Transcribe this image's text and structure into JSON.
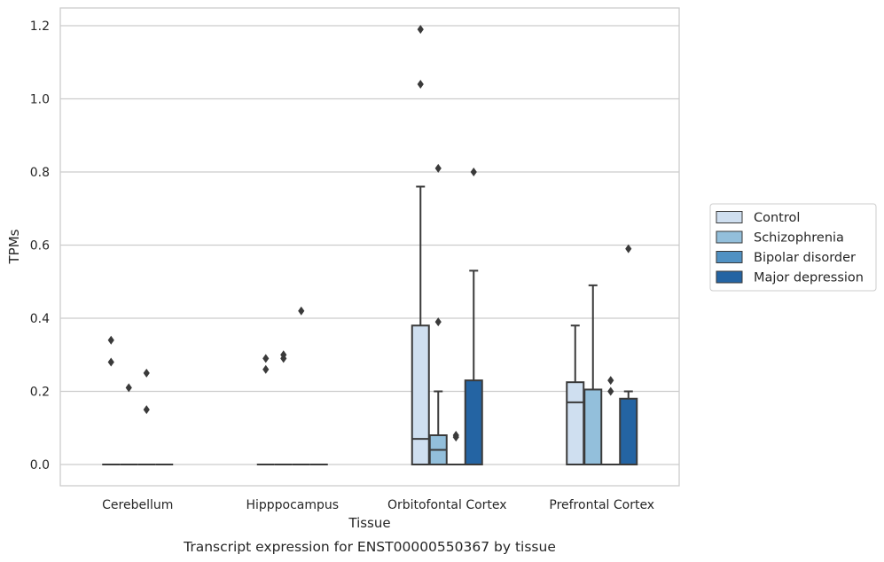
{
  "chart_data": {
    "type": "box",
    "title": "",
    "caption": "Transcript expression for ENST00000550367 by tissue",
    "xlabel": "Tissue",
    "ylabel": "TPMs",
    "ylim": [
      -0.058,
      1.25
    ],
    "yticks": [
      0.0,
      0.2,
      0.4,
      0.6,
      0.8,
      1.0,
      1.2
    ],
    "ytick_labels": [
      "0.0",
      "0.2",
      "0.4",
      "0.6",
      "0.8",
      "1.0",
      "1.2"
    ],
    "grid": "horizontal",
    "legend_position": "right",
    "categories": [
      "Cerebellum",
      "Hipppocampus",
      "Orbitofontal Cortex",
      "Prefrontal Cortex"
    ],
    "series": [
      {
        "name": "Control",
        "color": "#cfdff0",
        "boxes": [
          {
            "q1": 0,
            "median": 0,
            "q3": 0,
            "whisker_low": 0,
            "whisker_high": 0,
            "fliers": [
              0.34,
              0.28
            ]
          },
          {
            "q1": 0,
            "median": 0,
            "q3": 0,
            "whisker_low": 0,
            "whisker_high": 0,
            "fliers": [
              0.29,
              0.26
            ]
          },
          {
            "q1": 0,
            "median": 0.07,
            "q3": 0.38,
            "whisker_low": 0,
            "whisker_high": 0.76,
            "fliers": [
              1.19,
              1.04
            ]
          },
          {
            "q1": 0,
            "median": 0.17,
            "q3": 0.225,
            "whisker_low": 0,
            "whisker_high": 0.38,
            "fliers": []
          }
        ]
      },
      {
        "name": "Schizophrenia",
        "color": "#93bfdb",
        "boxes": [
          {
            "q1": 0,
            "median": 0,
            "q3": 0,
            "whisker_low": 0,
            "whisker_high": 0,
            "fliers": [
              0.21
            ]
          },
          {
            "q1": 0,
            "median": 0,
            "q3": 0,
            "whisker_low": 0,
            "whisker_high": 0,
            "fliers": [
              0.3,
              0.29
            ]
          },
          {
            "q1": 0,
            "median": 0.04,
            "q3": 0.08,
            "whisker_low": 0,
            "whisker_high": 0.2,
            "fliers": [
              0.81,
              0.39
            ]
          },
          {
            "q1": 0,
            "median": 0,
            "q3": 0.205,
            "whisker_low": 0,
            "whisker_high": 0.49,
            "fliers": []
          }
        ]
      },
      {
        "name": "Bipolar disorder",
        "color": "#5091c3",
        "boxes": [
          {
            "q1": 0,
            "median": 0,
            "q3": 0,
            "whisker_low": 0,
            "whisker_high": 0,
            "fliers": [
              0.25,
              0.15
            ]
          },
          {
            "q1": 0,
            "median": 0,
            "q3": 0,
            "whisker_low": 0,
            "whisker_high": 0,
            "fliers": [
              0.42
            ]
          },
          {
            "q1": 0,
            "median": 0,
            "q3": 0,
            "whisker_low": 0,
            "whisker_high": 0,
            "fliers": [
              0.08,
              0.075
            ]
          },
          {
            "q1": 0,
            "median": 0,
            "q3": 0,
            "whisker_low": 0,
            "whisker_high": 0,
            "fliers": [
              0.23,
              0.2
            ]
          }
        ]
      },
      {
        "name": "Major depression",
        "color": "#2464a3",
        "boxes": [
          {
            "q1": 0,
            "median": 0,
            "q3": 0,
            "whisker_low": 0,
            "whisker_high": 0,
            "fliers": []
          },
          {
            "q1": 0,
            "median": 0,
            "q3": 0,
            "whisker_low": 0,
            "whisker_high": 0,
            "fliers": []
          },
          {
            "q1": 0,
            "median": 0,
            "q3": 0.23,
            "whisker_low": 0,
            "whisker_high": 0.53,
            "fliers": [
              0.8
            ]
          },
          {
            "q1": 0,
            "median": 0,
            "q3": 0.18,
            "whisker_low": 0,
            "whisker_high": 0.2,
            "fliers": [
              0.59
            ]
          }
        ]
      }
    ]
  }
}
